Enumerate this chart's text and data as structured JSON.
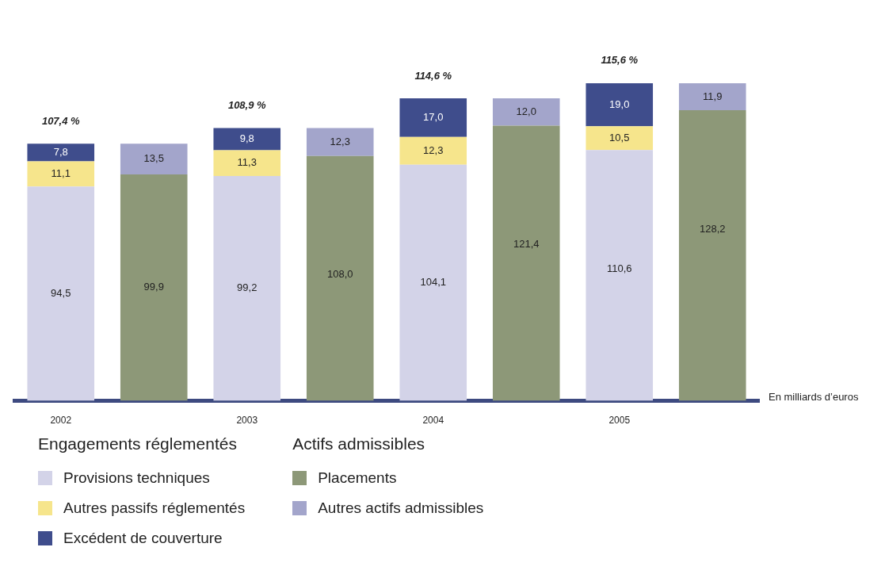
{
  "chart_data": {
    "type": "bar",
    "stacked": true,
    "categories": [
      "2002",
      null,
      "2003",
      null,
      "2004",
      null,
      "2005",
      null
    ],
    "legend_title": [
      "Engagements réglementés",
      "Actifs admissibles"
    ],
    "series": [
      {
        "name": "Provisions techniques",
        "color": "#d3d3e8",
        "values": [
          94.5,
          null,
          99.2,
          null,
          104.1,
          null,
          110.6,
          null
        ],
        "value_labels": [
          "94,5",
          null,
          "99,2",
          null,
          "104,1",
          null,
          "110,6",
          null
        ]
      },
      {
        "name": "Autres passifs réglementés",
        "color": "#f6e58c",
        "values": [
          11.1,
          null,
          11.3,
          null,
          12.3,
          null,
          10.5,
          null
        ],
        "value_labels": [
          "11,1",
          null,
          "11,3",
          null,
          "12,3",
          null,
          "10,5",
          null
        ]
      },
      {
        "name": "Excédent de couverture",
        "color": "#3f4d8c",
        "values": [
          7.8,
          null,
          9.8,
          null,
          17.0,
          null,
          19.0,
          null
        ],
        "value_labels": [
          "7,8",
          null,
          "9,8",
          null,
          "17,0",
          null,
          "19,0",
          null
        ]
      },
      {
        "name": "Placements",
        "color": "#8d9878",
        "values": [
          null,
          99.9,
          null,
          108.0,
          null,
          121.4,
          null,
          128.2
        ],
        "value_labels": [
          null,
          "99,9",
          null,
          "108,0",
          null,
          "121,4",
          null,
          "128,2"
        ]
      },
      {
        "name": "Autres actifs admissibles",
        "color": "#a3a5cb",
        "values": [
          null,
          13.5,
          null,
          12.3,
          null,
          12.0,
          null,
          11.9
        ],
        "value_labels": [
          null,
          "13,5",
          null,
          "12,3",
          null,
          "12,0",
          null,
          "11,9"
        ]
      }
    ],
    "annotations": [
      "107,4 %",
      "108,9 %",
      "114,6 %",
      "115,6 %",
      "En milliards d’euros"
    ],
    "legend": "bottom",
    "grid": false
  }
}
